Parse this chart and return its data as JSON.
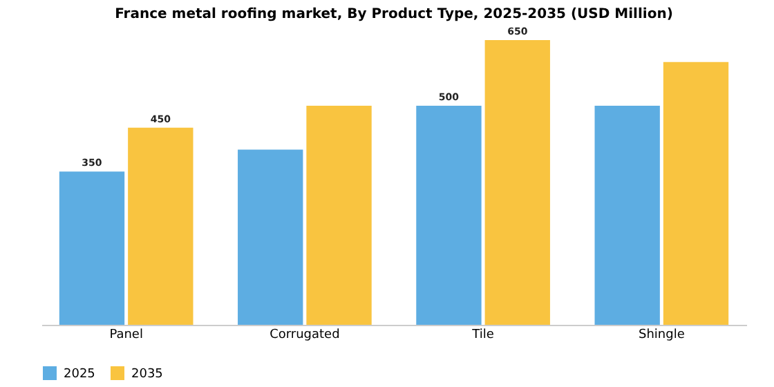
{
  "chart_data": {
    "type": "bar",
    "title": "France metal roofing market, By Product Type, 2025-2035 (USD Million)",
    "categories": [
      "Panel",
      "Corrugated",
      "Tile",
      "Shingle"
    ],
    "series": [
      {
        "name": "2025",
        "color": "#5dade2",
        "values": [
          350,
          400,
          500,
          500
        ],
        "value_labels": [
          "350",
          null,
          "500",
          null
        ]
      },
      {
        "name": "2035",
        "color": "#f9c440",
        "values": [
          450,
          500,
          650,
          600
        ],
        "value_labels": [
          "450",
          null,
          "650",
          null
        ]
      }
    ],
    "legend": "bottom"
  }
}
